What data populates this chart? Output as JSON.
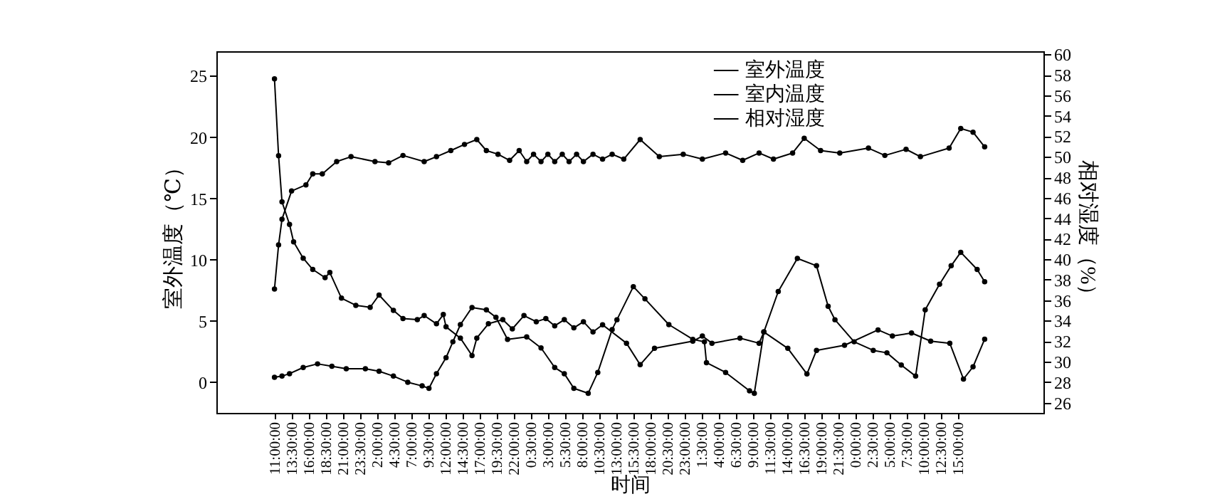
{
  "chart_data": {
    "type": "line",
    "xlabel": "时间",
    "ylabel": "室外温度（℃）",
    "y2label": "相对湿度（%）",
    "xlim": [
      "2000-01-01T02:30",
      "2000-01-06T03:30"
    ],
    "xticks": [
      {
        "value": "2000-01-01T11:00",
        "label": "11:00:00"
      },
      {
        "value": "2000-01-01T13:30",
        "label": "13:30:00"
      },
      {
        "value": "2000-01-01T16:00",
        "label": "16:00:00"
      },
      {
        "value": "2000-01-01T18:30",
        "label": "18:30:00"
      },
      {
        "value": "2000-01-01T21:00",
        "label": "21:00:00"
      },
      {
        "value": "2000-01-01T23:30",
        "label": "23:30:00"
      },
      {
        "value": "2000-01-02T02:00",
        "label": "2:00:00"
      },
      {
        "value": "2000-01-02T04:30",
        "label": "4:30:00"
      },
      {
        "value": "2000-01-02T07:00",
        "label": "7:00:00"
      },
      {
        "value": "2000-01-02T09:30",
        "label": "9:30:00"
      },
      {
        "value": "2000-01-02T12:00",
        "label": "12:00:00"
      },
      {
        "value": "2000-01-02T14:30",
        "label": "14:30:00"
      },
      {
        "value": "2000-01-02T17:00",
        "label": "17:00:00"
      },
      {
        "value": "2000-01-02T19:30",
        "label": "19:30:00"
      },
      {
        "value": "2000-01-02T22:00",
        "label": "22:00:00"
      },
      {
        "value": "2000-01-03T00:30",
        "label": "0:30:00"
      },
      {
        "value": "2000-01-03T03:00",
        "label": "3:00:00"
      },
      {
        "value": "2000-01-03T05:30",
        "label": "5:30:00"
      },
      {
        "value": "2000-01-03T08:00",
        "label": "8:00:00"
      },
      {
        "value": "2000-01-03T10:30",
        "label": "10:30:00"
      },
      {
        "value": "2000-01-03T13:00",
        "label": "13:00:00"
      },
      {
        "value": "2000-01-03T15:30",
        "label": "15:30:00"
      },
      {
        "value": "2000-01-03T18:00",
        "label": "18:00:00"
      },
      {
        "value": "2000-01-03T20:30",
        "label": "20:30:00"
      },
      {
        "value": "2000-01-03T23:00",
        "label": "23:00:00"
      },
      {
        "value": "2000-01-04T01:30",
        "label": "1:30:00"
      },
      {
        "value": "2000-01-04T04:00",
        "label": "4:00:00"
      },
      {
        "value": "2000-01-04T06:30",
        "label": "6:30:00"
      },
      {
        "value": "2000-01-04T09:00",
        "label": "9:00:00"
      },
      {
        "value": "2000-01-04T11:30",
        "label": "11:30:00"
      },
      {
        "value": "2000-01-04T14:00",
        "label": "14:00:00"
      },
      {
        "value": "2000-01-04T16:30",
        "label": "16:30:00"
      },
      {
        "value": "2000-01-04T19:00",
        "label": "19:00:00"
      },
      {
        "value": "2000-01-04T21:30",
        "label": "21:30:00"
      },
      {
        "value": "2000-01-05T00:00",
        "label": "0:00:00"
      },
      {
        "value": "2000-01-05T02:30",
        "label": "2:30:00"
      },
      {
        "value": "2000-01-05T05:00",
        "label": "5:00:00"
      },
      {
        "value": "2000-01-05T07:30",
        "label": "7:30:00"
      },
      {
        "value": "2000-01-05T10:00",
        "label": "10:00:00"
      },
      {
        "value": "2000-01-05T12:30",
        "label": "12:30:00"
      },
      {
        "value": "2000-01-05T15:00",
        "label": "15:00:00"
      }
    ],
    "ylim": [
      -2.5,
      27
    ],
    "yticks": [
      0,
      5,
      10,
      15,
      20,
      25
    ],
    "y2lim": [
      25,
      60.3
    ],
    "y2ticks": [
      26,
      28,
      30,
      32,
      34,
      36,
      38,
      40,
      42,
      44,
      46,
      48,
      50,
      52,
      54,
      56,
      58,
      60
    ],
    "legend": "top",
    "marker": "circle",
    "line_style": "solid",
    "series": [
      {
        "name": "室外温度",
        "color": "#000000",
        "x": [
          "2000-01-01T11:00",
          "2000-01-01T12:06",
          "2000-01-01T13:12",
          "2000-01-01T15:12",
          "2000-01-01T17:18",
          "2000-01-01T19:24",
          "2000-01-01T21:30",
          "2000-01-02T00:18",
          "2000-01-02T02:18",
          "2000-01-02T04:24",
          "2000-01-02T06:30",
          "2000-01-02T08:36",
          "2000-01-02T09:36",
          "2000-01-02T10:42",
          "2000-01-02T12:06",
          "2000-01-02T13:06",
          "2000-01-02T14:12",
          "2000-01-02T15:54",
          "2000-01-02T18:00",
          "2000-01-02T19:24",
          "2000-01-02T21:06",
          "2000-01-02T23:54",
          "2000-01-03T02:00",
          "2000-01-03T04:00",
          "2000-01-03T05:24",
          "2000-01-03T06:48",
          "2000-01-03T08:54",
          "2000-01-03T10:18",
          "2000-01-03T12:24",
          "2000-01-03T13:06",
          "2000-01-03T15:30",
          "2000-01-03T17:12",
          "2000-01-03T20:42",
          "2000-01-04T00:12",
          "2000-01-04T01:54",
          "2000-01-04T02:12",
          "2000-01-04T05:00",
          "2000-01-04T08:30",
          "2000-01-04T09:12",
          "2000-01-04T10:36",
          "2000-01-04T12:42",
          "2000-01-04T15:30",
          "2000-01-04T18:18",
          "2000-01-04T20:00",
          "2000-01-04T21:00",
          "2000-01-04T23:48",
          "2000-01-05T02:36",
          "2000-01-05T04:36",
          "2000-01-05T06:42",
          "2000-01-05T08:48",
          "2000-01-05T10:12",
          "2000-01-05T12:18",
          "2000-01-05T14:00",
          "2000-01-05T15:24",
          "2000-01-05T17:48",
          "2000-01-05T18:54"
        ],
        "values": [
          0.4,
          0.5,
          0.7,
          1.2,
          1.5,
          1.3,
          1.1,
          1.1,
          0.9,
          0.5,
          0.0,
          -0.3,
          -0.5,
          0.7,
          2.0,
          3.3,
          4.7,
          6.1,
          5.9,
          5.3,
          3.5,
          3.7,
          2.8,
          1.2,
          0.7,
          -0.5,
          -0.9,
          0.8,
          4.3,
          5.1,
          7.8,
          6.8,
          4.7,
          3.5,
          3.3,
          1.6,
          0.8,
          -0.7,
          -0.9,
          4.1,
          7.4,
          10.1,
          9.5,
          6.2,
          5.1,
          3.3,
          2.6,
          2.4,
          1.4,
          0.5,
          5.9,
          8.0,
          9.5,
          10.6,
          9.2,
          8.2
        ]
      },
      {
        "name": "室内温度",
        "color": "#000000",
        "x": [
          "2000-01-01T11:00",
          "2000-01-01T11:36",
          "2000-01-01T12:06",
          "2000-01-01T13:30",
          "2000-01-01T15:36",
          "2000-01-01T16:36",
          "2000-01-01T18:00",
          "2000-01-01T20:06",
          "2000-01-01T22:12",
          "2000-01-02T01:42",
          "2000-01-02T03:42",
          "2000-01-02T05:48",
          "2000-01-02T08:54",
          "2000-01-02T10:42",
          "2000-01-02T12:48",
          "2000-01-02T14:48",
          "2000-01-02T16:36",
          "2000-01-02T18:00",
          "2000-01-02T19:42",
          "2000-01-02T21:24",
          "2000-01-02T22:48",
          "2000-01-02T23:54",
          "2000-01-03T00:54",
          "2000-01-03T02:00",
          "2000-01-03T03:00",
          "2000-01-03T04:00",
          "2000-01-03T05:06",
          "2000-01-03T06:06",
          "2000-01-03T07:12",
          "2000-01-03T08:12",
          "2000-01-03T09:36",
          "2000-01-03T11:00",
          "2000-01-03T12:24",
          "2000-01-03T14:06",
          "2000-01-03T16:30",
          "2000-01-03T19:18",
          "2000-01-03T22:48",
          "2000-01-04T01:36",
          "2000-01-04T05:00",
          "2000-01-04T07:30",
          "2000-01-04T09:54",
          "2000-01-04T12:00",
          "2000-01-04T14:48",
          "2000-01-04T16:30",
          "2000-01-04T18:54",
          "2000-01-04T21:42",
          "2000-01-05T01:54",
          "2000-01-05T04:18",
          "2000-01-05T07:24",
          "2000-01-05T09:30",
          "2000-01-05T13:42",
          "2000-01-05T15:24",
          "2000-01-05T17:12",
          "2000-01-05T18:54"
        ],
        "values": [
          7.6,
          11.2,
          13.3,
          15.6,
          16.1,
          17.0,
          17.0,
          18.0,
          18.4,
          18.0,
          17.9,
          18.5,
          18.0,
          18.4,
          18.9,
          19.4,
          19.8,
          18.9,
          18.6,
          18.1,
          18.9,
          18.0,
          18.6,
          18.0,
          18.6,
          18.0,
          18.6,
          18.0,
          18.6,
          18.0,
          18.6,
          18.2,
          18.6,
          18.2,
          19.8,
          18.4,
          18.6,
          18.2,
          18.7,
          18.1,
          18.7,
          18.2,
          18.7,
          19.9,
          18.9,
          18.7,
          19.1,
          18.5,
          19.0,
          18.4,
          19.1,
          20.7,
          20.4,
          19.2
        ]
      },
      {
        "name": "相对湿度",
        "color": "#000000",
        "axis": "y2",
        "x": [
          "2000-01-01T11:00",
          "2000-01-01T11:36",
          "2000-01-01T12:06",
          "2000-01-01T13:12",
          "2000-01-01T13:48",
          "2000-01-01T15:12",
          "2000-01-01T16:36",
          "2000-01-01T18:24",
          "2000-01-01T19:06",
          "2000-01-01T20:48",
          "2000-01-01T22:54",
          "2000-01-02T01:00",
          "2000-01-02T02:18",
          "2000-01-02T04:24",
          "2000-01-02T05:48",
          "2000-01-02T07:54",
          "2000-01-02T08:54",
          "2000-01-02T10:42",
          "2000-01-02T11:42",
          "2000-01-02T12:06",
          "2000-01-02T14:12",
          "2000-01-02T15:54",
          "2000-01-02T16:36",
          "2000-01-02T18:18",
          "2000-01-02T20:24",
          "2000-01-02T21:48",
          "2000-01-02T23:30",
          "2000-01-03T01:18",
          "2000-01-03T02:42",
          "2000-01-03T04:00",
          "2000-01-03T05:24",
          "2000-01-03T06:48",
          "2000-01-03T08:12",
          "2000-01-03T09:36",
          "2000-01-03T11:00",
          "2000-01-03T14:30",
          "2000-01-03T16:30",
          "2000-01-03T18:36",
          "2000-01-04T00:12",
          "2000-01-04T01:36",
          "2000-01-04T03:00",
          "2000-01-04T07:06",
          "2000-01-04T09:54",
          "2000-01-04T10:36",
          "2000-01-04T14:06",
          "2000-01-04T16:54",
          "2000-01-04T18:18",
          "2000-01-04T22:24",
          "2000-01-05T03:18",
          "2000-01-05T05:24",
          "2000-01-05T08:12",
          "2000-01-05T11:00",
          "2000-01-05T13:48",
          "2000-01-05T15:48",
          "2000-01-05T17:12",
          "2000-01-05T18:54"
        ],
        "values": [
          57.6,
          50.1,
          45.6,
          43.4,
          41.7,
          40.1,
          39.0,
          38.2,
          38.7,
          36.2,
          35.5,
          35.3,
          36.5,
          35.0,
          34.2,
          34.1,
          34.5,
          33.7,
          34.6,
          33.4,
          32.3,
          30.6,
          32.3,
          33.7,
          34.1,
          33.2,
          34.5,
          33.9,
          34.2,
          33.5,
          34.1,
          33.3,
          33.9,
          32.9,
          33.6,
          31.8,
          29.7,
          31.3,
          32.0,
          32.5,
          31.8,
          32.3,
          31.8,
          32.9,
          31.3,
          28.8,
          31.1,
          31.6,
          33.1,
          32.5,
          32.8,
          32.0,
          31.8,
          28.3,
          29.5,
          32.2
        ]
      }
    ]
  }
}
